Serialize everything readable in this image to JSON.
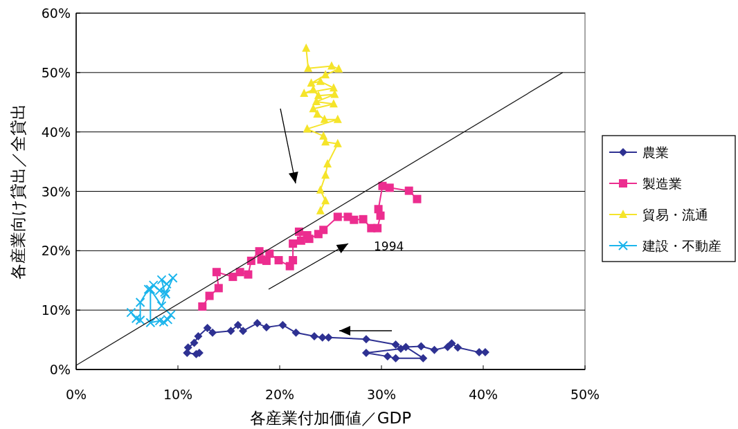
{
  "chart_data": {
    "type": "line",
    "xlabel": "各産業付加価値／GDP",
    "ylabel": "各産業向け貸出／全貸出",
    "xlim": [
      0,
      50
    ],
    "ylim": [
      0,
      60
    ],
    "xticks": [
      {
        "value": 0,
        "label": "0%"
      },
      {
        "value": 10,
        "label": "10%"
      },
      {
        "value": 20,
        "label": "20%"
      },
      {
        "value": 30,
        "label": "30%"
      },
      {
        "value": 40,
        "label": "40%"
      },
      {
        "value": 50,
        "label": "50%"
      }
    ],
    "yticks": [
      {
        "value": 0,
        "label": "0%"
      },
      {
        "value": 10,
        "label": "10%"
      },
      {
        "value": 20,
        "label": "20%"
      },
      {
        "value": 30,
        "label": "30%"
      },
      {
        "value": 40,
        "label": "40%"
      },
      {
        "value": 50,
        "label": "50%"
      },
      {
        "value": 60,
        "label": "60%"
      }
    ],
    "grid": "y",
    "legend": "right",
    "line_style": "solid",
    "annotations": [
      "1994"
    ],
    "series": [
      {
        "name": "農業",
        "color": "#2e3192",
        "marker": "diamond",
        "x": [
          40.2,
          39.6,
          37.5,
          36.9,
          36.5,
          35.2,
          33.9,
          32.4,
          34.1,
          31.4,
          30.6,
          28.5,
          31.9,
          31.4,
          28.5,
          24.8,
          24.2,
          23.4,
          21.6,
          20.3,
          18.7,
          17.8,
          16.4,
          15.9,
          15.2,
          13.4,
          12.9,
          12.0,
          11.6,
          11.0,
          10.9,
          11.8,
          12.1
        ],
        "values": [
          2.9,
          2.9,
          3.7,
          4.4,
          3.8,
          3.3,
          3.9,
          3.8,
          1.9,
          1.9,
          2.2,
          2.8,
          3.5,
          4.2,
          5.1,
          5.4,
          5.4,
          5.6,
          6.2,
          7.5,
          7.1,
          7.8,
          6.5,
          7.5,
          6.5,
          6.2,
          7.0,
          5.6,
          4.5,
          3.7,
          2.8,
          2.6,
          2.8
        ]
      },
      {
        "name": "製造業",
        "color": "#ec2d8f",
        "marker": "square",
        "x": [
          12.4,
          13.1,
          14.0,
          13.8,
          15.4,
          16.1,
          16.9,
          17.2,
          18.0,
          18.2,
          18.7,
          19.0,
          19.9,
          21.0,
          21.3,
          21.3,
          22.1,
          21.9,
          22.7,
          22.9,
          23.8,
          24.3,
          25.7,
          26.7,
          27.3,
          28.2,
          29.0,
          29.6,
          29.9,
          29.7,
          30.1,
          30.8,
          32.7,
          33.5
        ],
        "values": [
          10.6,
          12.4,
          13.7,
          16.4,
          15.6,
          16.4,
          16.0,
          18.3,
          19.9,
          18.5,
          18.3,
          19.5,
          18.4,
          17.4,
          18.4,
          21.2,
          21.7,
          23.2,
          22.6,
          22.0,
          22.8,
          23.5,
          25.7,
          25.7,
          25.2,
          25.3,
          23.8,
          23.8,
          25.9,
          27.0,
          30.9,
          30.6,
          30.1,
          28.7
        ]
      },
      {
        "name": "貿易・流通",
        "color": "#f5e42a",
        "marker": "triangle",
        "x": [
          22.6,
          22.8,
          25.1,
          25.8,
          24.5,
          23.1,
          24.0,
          25.3,
          22.4,
          23.3,
          23.8,
          25.4,
          23.6,
          25.3,
          23.3,
          23.7,
          24.4,
          25.7,
          22.7,
          24.3,
          24.5,
          25.7,
          24.7,
          24.5,
          24.0,
          24.5,
          24.0
        ],
        "values": [
          54.1,
          50.7,
          51.1,
          50.6,
          49.6,
          48.2,
          48.5,
          47.4,
          46.5,
          47.1,
          46.1,
          46.3,
          45.1,
          44.7,
          43.9,
          43.0,
          42.1,
          42.1,
          40.5,
          39.3,
          38.3,
          38.0,
          34.6,
          32.7,
          30.2,
          28.4,
          26.7
        ]
      },
      {
        "name": "建設・不動産",
        "color": "#1cb5ec",
        "marker": "cross",
        "x": [
          5.4,
          5.9,
          6.3,
          6.3,
          7.1,
          7.6,
          8.2,
          8.7,
          8.4,
          8.9,
          9.5,
          8.8,
          8.4,
          7.3,
          7.3,
          8.2,
          8.6,
          9.0,
          9.3
        ],
        "values": [
          9.6,
          8.6,
          8.3,
          11.3,
          13.5,
          14.2,
          13.3,
          13.0,
          15.1,
          14.4,
          15.4,
          12.7,
          10.7,
          13.5,
          7.9,
          8.2,
          8.0,
          8.4,
          9.2
        ]
      },
      {
        "type": "line",
        "color": "#1a1a1a",
        "marker": "none",
        "x": [
          0,
          47.8
        ],
        "values": [
          0.7,
          50.0
        ]
      }
    ]
  }
}
